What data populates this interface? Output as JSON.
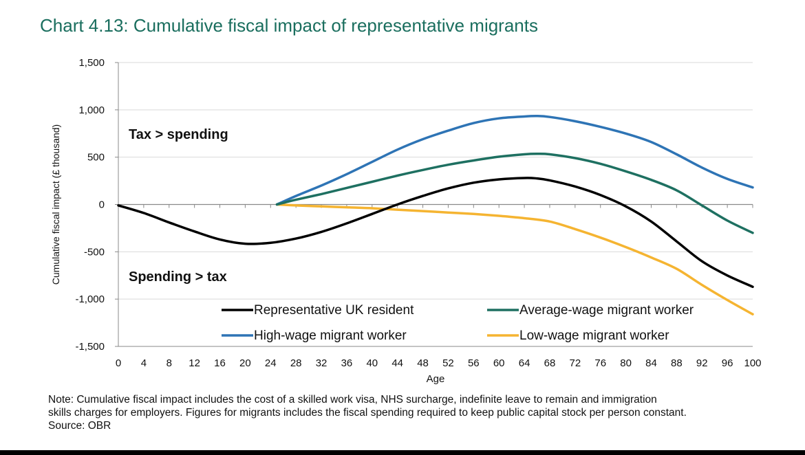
{
  "chart_data": {
    "type": "line",
    "title": "Chart 4.13: Cumulative fiscal impact of representative migrants",
    "xlabel": "Age",
    "ylabel": "Cumulative fiscal impact (£ thousand)",
    "xlim": [
      0,
      100
    ],
    "ylim": [
      -1500,
      1500
    ],
    "x_ticks": [
      "0",
      "4",
      "8",
      "12",
      "16",
      "20",
      "24",
      "28",
      "32",
      "36",
      "40",
      "44",
      "48",
      "52",
      "56",
      "60",
      "64",
      "68",
      "72",
      "76",
      "80",
      "84",
      "88",
      "92",
      "96",
      "100"
    ],
    "y_ticks": [
      "1,500",
      "1,000",
      "500",
      "0",
      "-500",
      "-1,000",
      "-1,500"
    ],
    "annotations": {
      "upper": "Tax > spending",
      "lower": "Spending > tax"
    },
    "grid": "horizontal",
    "legend_position": "bottom-center",
    "series": [
      {
        "name": "Representative UK resident",
        "color": "#000000",
        "x": [
          0,
          4,
          8,
          12,
          16,
          20,
          24,
          28,
          32,
          36,
          40,
          44,
          48,
          52,
          56,
          60,
          64,
          66,
          68,
          72,
          76,
          80,
          84,
          88,
          92,
          96,
          100
        ],
        "y": [
          -10,
          -90,
          -190,
          -285,
          -370,
          -415,
          -405,
          -360,
          -290,
          -200,
          -100,
          0,
          90,
          170,
          230,
          265,
          280,
          275,
          255,
          190,
          100,
          -20,
          -180,
          -390,
          -600,
          -750,
          -870
        ]
      },
      {
        "name": "Average-wage migrant worker",
        "color": "#1e7061",
        "x": [
          25,
          28,
          32,
          36,
          40,
          44,
          48,
          52,
          56,
          60,
          64,
          66,
          68,
          72,
          76,
          80,
          84,
          88,
          92,
          96,
          100
        ],
        "y": [
          0,
          50,
          110,
          175,
          240,
          305,
          365,
          420,
          465,
          505,
          530,
          535,
          530,
          490,
          430,
          350,
          260,
          150,
          -10,
          -170,
          -300
        ]
      },
      {
        "name": "High-wage migrant worker",
        "color": "#2e74b5",
        "x": [
          25,
          28,
          32,
          36,
          40,
          44,
          48,
          52,
          56,
          60,
          64,
          66,
          68,
          72,
          76,
          80,
          84,
          88,
          92,
          96,
          100
        ],
        "y": [
          0,
          90,
          200,
          320,
          450,
          580,
          690,
          780,
          860,
          910,
          930,
          935,
          925,
          880,
          820,
          750,
          660,
          530,
          390,
          270,
          180
        ]
      },
      {
        "name": "Low-wage migrant worker",
        "color": "#f5b431",
        "x": [
          25,
          28,
          32,
          36,
          40,
          44,
          48,
          52,
          56,
          60,
          64,
          68,
          72,
          76,
          80,
          84,
          88,
          92,
          96,
          100
        ],
        "y": [
          0,
          -10,
          -20,
          -30,
          -40,
          -55,
          -70,
          -85,
          -100,
          -120,
          -145,
          -180,
          -260,
          -350,
          -450,
          -560,
          -680,
          -850,
          -1010,
          -1160
        ]
      }
    ]
  },
  "note": {
    "line1": "Note: Cumulative fiscal impact includes the cost of a skilled work visa, NHS surcharge, indefinite leave to remain and immigration",
    "line2": "skills charges for employers. Figures for migrants includes the fiscal spending required to keep public capital stock per person constant.",
    "line3": "Source: OBR"
  }
}
